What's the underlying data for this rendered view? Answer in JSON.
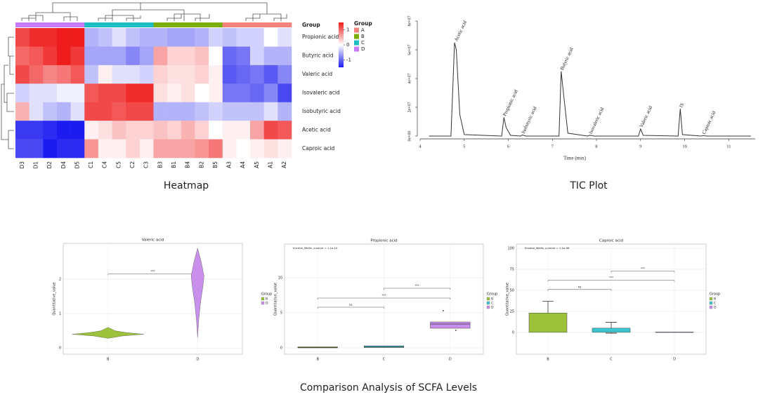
{
  "caption": "Comparison Analysis of SCFA Levels",
  "chart_data": [
    {
      "type": "heatmap",
      "caption": "Heatmap",
      "rows": [
        "Propionic acid",
        "Butyric acid",
        "Valeric acid",
        "Isovaleric acid",
        "Isobutyric acid",
        "Acetic acid",
        "Caproic acid"
      ],
      "columns": [
        "D3",
        "D1",
        "D2",
        "D4",
        "D5",
        "C1",
        "C4",
        "C5",
        "C2",
        "C3",
        "B3",
        "B1",
        "B4",
        "B2",
        "B5",
        "A3",
        "A4",
        "A5",
        "A1",
        "A2"
      ],
      "column_groups": [
        "D",
        "D",
        "D",
        "D",
        "D",
        "C",
        "C",
        "C",
        "C",
        "C",
        "B",
        "B",
        "B",
        "B",
        "B",
        "A",
        "A",
        "A",
        "A",
        "A"
      ],
      "values": [
        [
          1.2,
          1.4,
          1.4,
          1.5,
          1.6,
          -0.5,
          -0.4,
          -0.2,
          -0.4,
          -0.5,
          -0.5,
          -0.6,
          -0.6,
          -0.5,
          -0.3,
          -0.4,
          -0.3,
          -0.3,
          0,
          -0.2
        ],
        [
          1.0,
          1.1,
          1.3,
          1.5,
          1.3,
          -0.6,
          -0.6,
          -0.6,
          -0.8,
          -0.6,
          0.6,
          0.3,
          0.3,
          0.4,
          0,
          -1.0,
          -0.9,
          -0.3,
          -0.5,
          -0.5
        ],
        [
          1.2,
          1.0,
          0.8,
          0.9,
          1.1,
          -0.4,
          0.1,
          -0.2,
          -0.2,
          -0.3,
          0.3,
          0.2,
          0.2,
          0.3,
          0.1,
          -1.1,
          -1.0,
          -0.9,
          -1.1,
          -0.8
        ],
        [
          -0.3,
          -0.2,
          -0.2,
          -0.1,
          -0.1,
          1.1,
          1.2,
          1.2,
          1.4,
          1.4,
          0.2,
          0.1,
          0.2,
          0,
          0.1,
          -0.9,
          -0.9,
          -1.0,
          -0.8,
          -1.2
        ],
        [
          0.5,
          -0.2,
          -0.4,
          -0.5,
          -0.2,
          1.2,
          1.2,
          1.1,
          1.2,
          1.2,
          -0.5,
          -0.5,
          -0.5,
          -0.4,
          -0.3,
          -0.4,
          -0.4,
          -0.4,
          -0.2,
          -0.5
        ],
        [
          -1.3,
          -1.3,
          -1.4,
          -1.6,
          -1.5,
          0.1,
          0.2,
          0.4,
          0.3,
          0.3,
          0.4,
          0.3,
          0.5,
          0.3,
          0,
          0.1,
          0.1,
          0.6,
          1.2,
          1.1
        ],
        [
          -1.2,
          -1.2,
          -1.5,
          -1.4,
          -1.4,
          0.7,
          0.1,
          0.1,
          0.3,
          0.1,
          0.6,
          0.6,
          0.6,
          0.7,
          0.9,
          0.1,
          0,
          0.1,
          0.2,
          0.1
        ]
      ],
      "clim": [
        -1.5,
        1.5
      ],
      "cticks": [
        1,
        0,
        -1
      ],
      "colorscale": [
        "#1c1cf0",
        "#ffffff",
        "#ee1c1c"
      ],
      "group_bar_label": "Group",
      "legend_title": "Group",
      "groups": [
        {
          "name": "A",
          "color": "#f4837d"
        },
        {
          "name": "B",
          "color": "#7cae00"
        },
        {
          "name": "C",
          "color": "#1cbdc2"
        },
        {
          "name": "D",
          "color": "#c77cff"
        }
      ]
    },
    {
      "type": "line",
      "caption": "TIC Plot",
      "xlabel": "Time (min)",
      "color": "#333333",
      "x": [
        4.2,
        4.7,
        4.78,
        4.82,
        4.9,
        5.0,
        5.85,
        5.9,
        5.95,
        6.05,
        6.28,
        6.32,
        6.4,
        7.15,
        7.2,
        7.25,
        7.35,
        7.8,
        7.85,
        7.95,
        8.95,
        9.0,
        9.06,
        9.85,
        9.9,
        9.95,
        10.38,
        10.42,
        10.5,
        11.5
      ],
      "values": [
        0,
        0,
        65000000,
        60000000,
        15000000,
        1000000,
        0,
        13000000,
        6000000,
        500000,
        0,
        800000,
        0,
        0,
        45000000,
        30000000,
        2000000,
        0,
        600000,
        0,
        0,
        5000000,
        500000,
        0,
        19000000,
        1000000,
        0,
        400000,
        0,
        0
      ],
      "xlim": [
        4,
        11.6
      ],
      "xticks": [
        4,
        5,
        6,
        7,
        8,
        9,
        10,
        11
      ],
      "ylim": [
        0,
        80000000
      ],
      "yticks": [
        {
          "value": 0,
          "label": "0e+00"
        },
        {
          "value": 20000000,
          "label": "2e+07"
        },
        {
          "value": 40000000,
          "label": "4e+07"
        },
        {
          "value": 60000000,
          "label": "6e+07"
        },
        {
          "value": 80000000,
          "label": "8e+07"
        }
      ],
      "annotations": [
        {
          "text": "Acetic acid",
          "x": 4.8,
          "y": 65000000
        },
        {
          "text": "Propionic acid",
          "x": 5.9,
          "y": 13000000
        },
        {
          "text": "Isobutyric acid",
          "x": 6.32,
          "y": 800000
        },
        {
          "text": "Butyric acid",
          "x": 7.2,
          "y": 45000000
        },
        {
          "text": "Isovaleric acid",
          "x": 7.85,
          "y": 600000
        },
        {
          "text": "Valeric acid",
          "x": 9.0,
          "y": 5000000
        },
        {
          "text": "IS",
          "x": 9.9,
          "y": 19000000
        },
        {
          "text": "Caproic acid",
          "x": 10.42,
          "y": 400000
        }
      ]
    },
    {
      "type": "violin",
      "title": "Valeric acid",
      "ylabel": "Quantitative_value",
      "categories": [
        "B",
        "D"
      ],
      "ylim": [
        -0.18,
        3.04
      ],
      "yticks": [
        0,
        1,
        2
      ],
      "grid": true,
      "legend_title": "Group",
      "series": [
        {
          "name": "B",
          "color": "#9cc23c",
          "y": [
            0.28,
            0.35,
            0.4,
            0.45,
            0.5,
            0.6
          ],
          "width": [
            0,
            0.4,
            1,
            0.5,
            0.2,
            0
          ]
        },
        {
          "name": "D",
          "color": "#c890ea",
          "y": [
            0.3,
            0.8,
            1.3,
            1.8,
            2.1,
            2.5,
            2.9
          ],
          "width": [
            0,
            0.03,
            0.08,
            0.15,
            0.18,
            0.1,
            0
          ]
        }
      ],
      "brackets": [
        {
          "from": "B",
          "to": "D",
          "y": 2.15,
          "label": "***"
        }
      ]
    },
    {
      "type": "box",
      "title": "Propionic acid",
      "subtitle": "Kruskal_Wallis, p-value = 1.1e-10",
      "ylabel": "Quantitative_value",
      "categories": [
        "B",
        "C",
        "D"
      ],
      "ylim": [
        -0.9,
        14.8
      ],
      "yticks": [
        0,
        5,
        10
      ],
      "grid": true,
      "legend_title": "Group",
      "series": [
        {
          "name": "B",
          "color": "#9cc23c",
          "low": 0,
          "high": 0.15,
          "median": 0.05
        },
        {
          "name": "C",
          "color": "#3cc5cc",
          "low": 0.05,
          "high": 0.3,
          "median": 0.15
        },
        {
          "name": "D",
          "color": "#c890ea",
          "low": 2.8,
          "high": 3.7,
          "median": 3.4,
          "points": [
            5.3,
            2.5
          ]
        }
      ],
      "brackets": [
        {
          "from": "B",
          "to": "C",
          "y": 5.8,
          "label": "ns"
        },
        {
          "from": "B",
          "to": "D",
          "y": 7.1,
          "label": "***"
        },
        {
          "from": "C",
          "to": "D",
          "y": 8.5,
          "label": "***"
        }
      ]
    },
    {
      "type": "box",
      "title": "Caproic acid",
      "subtitle": "Kruskal_Wallis, p-value = 1.1e-08",
      "ylabel": "Quantitative_value",
      "categories": [
        "B",
        "C",
        "D"
      ],
      "ylim": [
        -26,
        105
      ],
      "yticks": [
        0,
        25,
        50,
        75,
        100
      ],
      "grid": true,
      "legend_title": "Group",
      "series": [
        {
          "name": "B",
          "color": "#9cc23c",
          "low": 0,
          "high": 23,
          "err_low": 8,
          "err_high": 37
        },
        {
          "name": "C",
          "color": "#3cc5cc",
          "low": 0,
          "high": 5,
          "err_low": -1,
          "err_high": 12
        },
        {
          "name": "D",
          "color": "#c890ea",
          "low": 0,
          "high": 0.5
        }
      ],
      "brackets": [
        {
          "from": "B",
          "to": "C",
          "y": 51,
          "label": "ns"
        },
        {
          "from": "B",
          "to": "D",
          "y": 62,
          "label": "***"
        },
        {
          "from": "C",
          "to": "D",
          "y": 73,
          "label": "***"
        }
      ]
    }
  ]
}
